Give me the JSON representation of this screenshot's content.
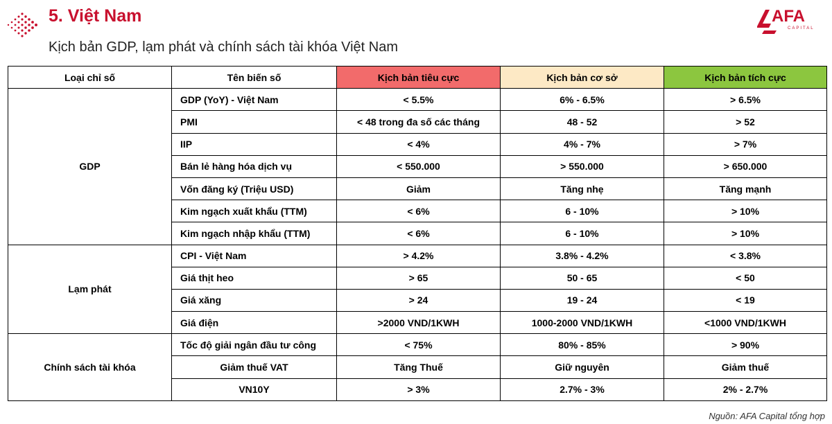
{
  "header": {
    "section_title": "5. Việt Nam",
    "subtitle": "Kịch bản GDP, lạm phát và chính sách tài khóa Việt Nam",
    "logo_text": "AFA",
    "logo_sub": "CAPITAL"
  },
  "colors": {
    "accent_red": "#c8102e",
    "negative_header": "#f26b6b",
    "base_header": "#fde9c5",
    "positive_header": "#8cc63f"
  },
  "table": {
    "headers": [
      "Loại chỉ số",
      "Tên biến số",
      "Kịch bản tiêu cực",
      "Kịch bản cơ sở",
      "Kịch bản tích cực"
    ],
    "groups": [
      {
        "name": "GDP",
        "rows": [
          {
            "variable": "GDP (YoY) - Việt Nam",
            "negative": "< 5.5%",
            "base": "6% - 6.5%",
            "positive": "> 6.5%"
          },
          {
            "variable": "PMI",
            "negative": "< 48 trong đa số các tháng",
            "base": "48 - 52",
            "positive": "> 52"
          },
          {
            "variable": "IIP",
            "negative": "< 4%",
            "base": "4% - 7%",
            "positive": "> 7%"
          },
          {
            "variable": "Bán lẻ hàng hóa dịch vụ",
            "negative": "< 550.000",
            "base": "> 550.000",
            "positive": "> 650.000"
          },
          {
            "variable": "Vốn đăng ký (Triệu USD)",
            "negative": "Giảm",
            "base": "Tăng nhẹ",
            "positive": "Tăng mạnh"
          },
          {
            "variable": "Kim ngạch xuất khẩu (TTM)",
            "negative": "< 6%",
            "base": "6 - 10%",
            "positive": "> 10%"
          },
          {
            "variable": "Kim ngạch nhập khẩu (TTM)",
            "negative": "< 6%",
            "base": "6 - 10%",
            "positive": "> 10%"
          }
        ]
      },
      {
        "name": "Lạm phát",
        "rows": [
          {
            "variable": "CPI  - Việt Nam",
            "negative": "> 4.2%",
            "base": "3.8% - 4.2%",
            "positive": "< 3.8%"
          },
          {
            "variable": "Giá thịt heo",
            "negative": "> 65",
            "base": "50 - 65",
            "positive": "< 50"
          },
          {
            "variable": "Giá xăng",
            "negative": "> 24",
            "base": "19 - 24",
            "positive": "< 19"
          },
          {
            "variable": "Giá điện",
            "negative": ">2000 VND/1KWH",
            "base": "1000-2000 VND/1KWH",
            "positive": "<1000 VND/1KWH"
          }
        ]
      },
      {
        "name": "Chính sách tài khóa",
        "rows": [
          {
            "variable": "Tốc độ giải ngân đầu tư công",
            "negative": "< 75%",
            "base": "80% - 85%",
            "positive": "> 90%"
          },
          {
            "variable": "Giảm thuế VAT",
            "negative": "Tăng Thuế",
            "base": "Giữ nguyên",
            "positive": "Giảm thuế"
          },
          {
            "variable": "VN10Y",
            "negative": "> 3%",
            "base": "2.7% - 3%",
            "positive": "2% - 2.7%"
          }
        ]
      }
    ]
  },
  "source": "Nguồn: AFA Capital tổng hợp"
}
